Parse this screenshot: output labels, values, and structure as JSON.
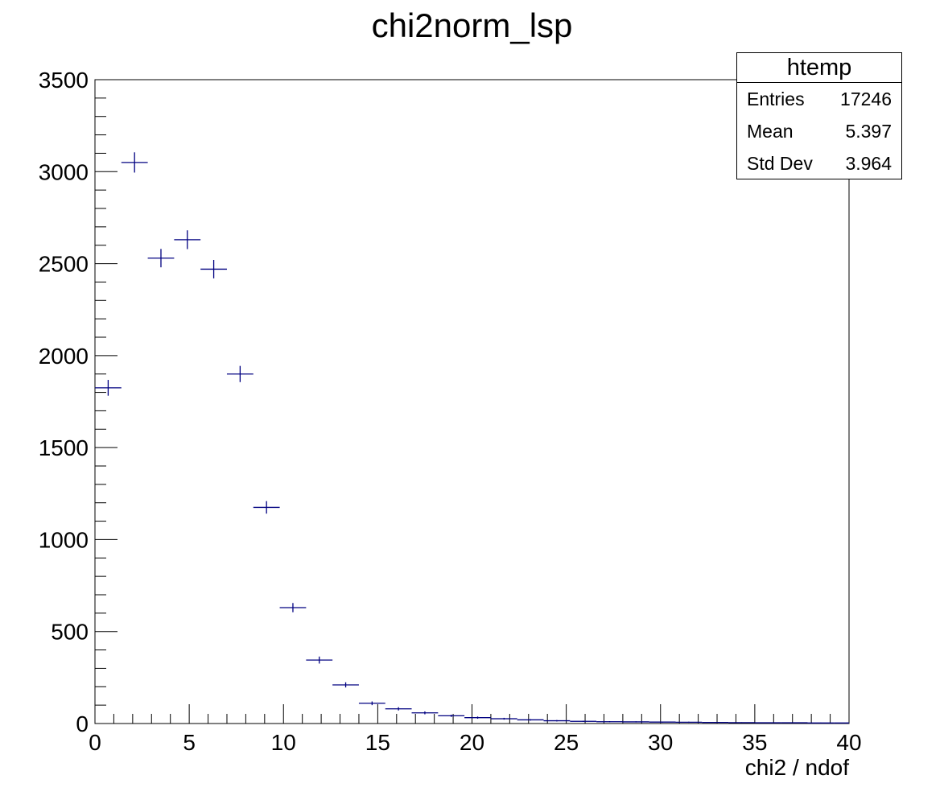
{
  "title": "chi2norm_lsp",
  "stats": {
    "name": "htemp",
    "rows": [
      {
        "label": "Entries",
        "value": "17246"
      },
      {
        "label": "Mean",
        "value": "5.397"
      },
      {
        "label": "Std Dev",
        "value": "3.964"
      }
    ]
  },
  "colors": {
    "marker": "#000080",
    "axis": "#000000"
  },
  "chart_data": {
    "type": "scatter",
    "title": "chi2norm_lsp",
    "xlabel": "chi2 / ndof",
    "ylabel": "",
    "xlim": [
      0,
      40
    ],
    "ylim": [
      0,
      3500
    ],
    "bin_width": 1.4,
    "x_ticks": [
      0,
      5,
      10,
      15,
      20,
      25,
      30,
      35,
      40
    ],
    "y_ticks": [
      0,
      500,
      1000,
      1500,
      2000,
      2500,
      3000,
      3500
    ],
    "legend": "top-right",
    "grid": false,
    "series": [
      {
        "x": [
          0.7,
          2.1,
          3.5,
          4.9,
          6.3,
          7.7,
          9.1,
          10.5,
          11.9,
          13.3,
          14.7,
          16.1,
          17.5,
          18.9,
          20.3,
          21.7,
          23.1,
          24.5,
          25.9,
          27.3,
          28.7,
          30.1,
          31.5,
          32.9,
          34.3,
          35.7,
          37.1,
          38.5,
          39.9
        ],
        "y": [
          1825,
          3050,
          2530,
          2630,
          2470,
          1900,
          1175,
          630,
          345,
          210,
          110,
          80,
          58,
          42,
          32,
          26,
          20,
          15,
          12,
          10,
          9,
          8,
          7,
          6,
          5,
          4,
          4,
          3,
          3
        ],
        "yerr": [
          43,
          55,
          50,
          51,
          50,
          44,
          34,
          25,
          19,
          14,
          10,
          9,
          8,
          6,
          6,
          5,
          4,
          4,
          3,
          3,
          3,
          3,
          3,
          2,
          2,
          2,
          2,
          2,
          2
        ]
      }
    ]
  }
}
